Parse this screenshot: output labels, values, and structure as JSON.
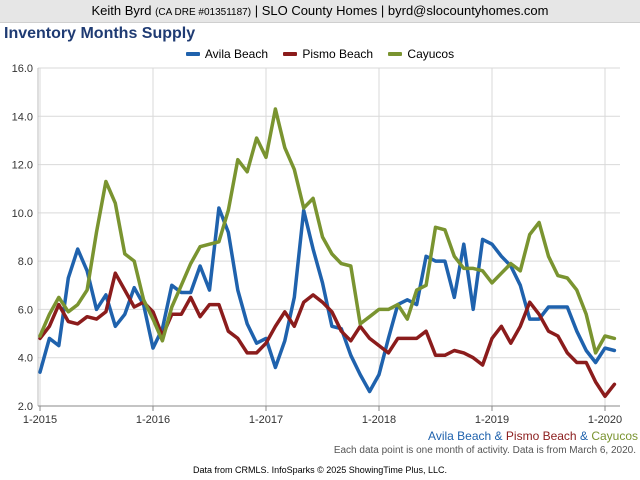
{
  "header": {
    "name": "Keith Byrd",
    "license": "(CA DRE #01351187)",
    "rest": "| SLO County Homes | byrd@slocountyhomes.com"
  },
  "colors": {
    "avila": "#1f62ad",
    "pismo": "#8b1c1c",
    "cayucos": "#7a9430",
    "title": "#1f3b73"
  },
  "footer": {
    "amp": "&",
    "note": "Each data point is one month of activity. Data is from March 6, 2020.",
    "source": "Data from CRMLS. InfoSparks © 2025 ShowingTime Plus, LLC."
  },
  "chart_data": {
    "type": "line",
    "title": "Inventory Months Supply",
    "xlabel": "",
    "ylabel": "",
    "ylim": [
      2.0,
      16.0
    ],
    "y_ticks": [
      "2.0",
      "4.0",
      "6.0",
      "8.0",
      "10.0",
      "12.0",
      "14.0",
      "16.0"
    ],
    "x_ticks": [
      "1-2015",
      "1-2016",
      "1-2017",
      "1-2018",
      "1-2019",
      "1-2020"
    ],
    "x_start": "2015-01",
    "grid": true,
    "legend_position": "top-center",
    "series": [
      {
        "name": "Avila Beach",
        "values": [
          3.4,
          4.8,
          4.5,
          7.3,
          8.5,
          7.6,
          6.0,
          6.6,
          5.3,
          5.8,
          6.9,
          6.2,
          4.4,
          5.2,
          7.0,
          6.7,
          6.7,
          7.8,
          6.8,
          10.2,
          9.2,
          6.8,
          5.4,
          4.6,
          4.8,
          3.6,
          4.7,
          6.5,
          10.1,
          8.5,
          7.1,
          5.3,
          5.2,
          4.1,
          3.3,
          2.6,
          3.3,
          4.8,
          6.2,
          6.4,
          6.2,
          8.2,
          8.0,
          8.0,
          6.5,
          8.7,
          6.0,
          8.9,
          8.7,
          8.2,
          7.8,
          7.0,
          5.6,
          5.6,
          6.1,
          6.1,
          6.1,
          5.1,
          4.3,
          3.8,
          4.4,
          4.3
        ]
      },
      {
        "name": "Pismo Beach",
        "values": [
          4.8,
          5.3,
          6.2,
          5.5,
          5.4,
          5.7,
          5.6,
          5.9,
          7.5,
          6.8,
          6.1,
          6.3,
          5.9,
          4.9,
          5.8,
          5.8,
          6.5,
          5.7,
          6.2,
          6.2,
          5.1,
          4.8,
          4.2,
          4.2,
          4.6,
          5.3,
          5.9,
          5.3,
          6.3,
          6.6,
          6.3,
          5.9,
          5.1,
          4.7,
          5.3,
          4.8,
          4.5,
          4.2,
          4.8,
          4.8,
          4.8,
          5.1,
          4.1,
          4.1,
          4.3,
          4.2,
          4.0,
          3.7,
          4.8,
          5.3,
          4.6,
          5.3,
          6.3,
          5.8,
          5.1,
          4.9,
          4.2,
          3.8,
          3.8,
          3.0,
          2.4,
          2.9
        ]
      },
      {
        "name": "Cayucos",
        "values": [
          4.9,
          5.8,
          6.5,
          5.9,
          6.2,
          6.8,
          9.2,
          11.3,
          10.4,
          8.3,
          8.0,
          6.4,
          5.6,
          4.7,
          6.1,
          7.0,
          7.9,
          8.6,
          8.7,
          8.8,
          10.1,
          12.2,
          11.7,
          13.1,
          12.3,
          14.3,
          12.7,
          11.8,
          10.2,
          10.6,
          9.0,
          8.3,
          7.9,
          7.8,
          5.4,
          5.7,
          6.0,
          6.0,
          6.2,
          5.6,
          6.8,
          7.0,
          9.4,
          9.3,
          8.2,
          7.7,
          7.7,
          7.6,
          7.1,
          7.5,
          7.9,
          7.6,
          9.1,
          9.6,
          8.2,
          7.4,
          7.3,
          6.8,
          5.8,
          4.2,
          4.9,
          4.8
        ]
      }
    ]
  }
}
